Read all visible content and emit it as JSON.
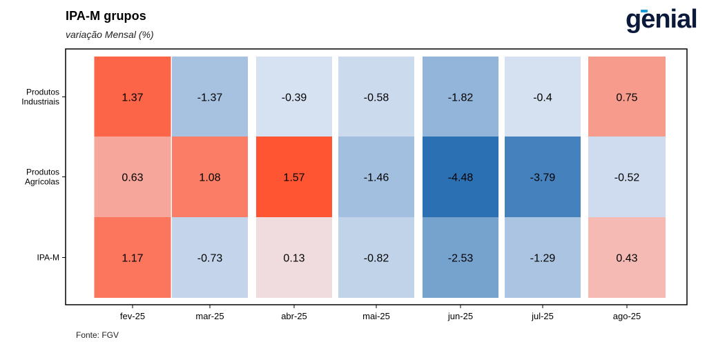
{
  "header": {
    "title": "IPA-M grupos",
    "subtitle": "variação Mensal (%)"
  },
  "logo": {
    "text": "genial"
  },
  "footer": {
    "source": "Fonte: FGV"
  },
  "chart_data": {
    "type": "heatmap",
    "x": [
      "fev-25",
      "mar-25",
      "abr-25",
      "mai-25",
      "jun-25",
      "jul-25",
      "ago-25"
    ],
    "y": [
      [
        "Produtos",
        "Industriais"
      ],
      [
        "Produtos",
        "Agrícolas"
      ],
      [
        "IPA-M"
      ]
    ],
    "values": [
      [
        1.37,
        -1.37,
        -0.39,
        -0.58,
        -1.82,
        -0.4,
        0.75
      ],
      [
        0.63,
        1.08,
        1.57,
        -1.46,
        -4.48,
        -3.79,
        -0.52
      ],
      [
        1.17,
        -0.73,
        0.13,
        -0.82,
        -2.53,
        -1.29,
        0.43
      ]
    ],
    "labels": [
      [
        "1.37",
        "-1.37",
        "-0.39",
        "-0.58",
        "-1.82",
        "-0.4",
        "0.75"
      ],
      [
        "0.63",
        "1.08",
        "1.57",
        "-1.46",
        "-4.48",
        "-3.79",
        "-0.52"
      ],
      [
        "1.17",
        "-0.73",
        "0.13",
        "-0.82",
        "-2.53",
        "-1.29",
        "0.43"
      ]
    ],
    "colors": {
      "negative_max": "#2b70b3",
      "neutral": "#eef1fa",
      "positive_max": "#ff5533"
    },
    "legend": "none",
    "grid": false
  }
}
